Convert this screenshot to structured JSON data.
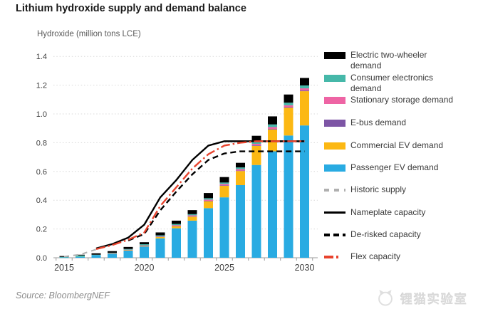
{
  "header": {
    "title": "Lithium hydroxide supply and demand balance"
  },
  "axis": {
    "ylabel": "Hydroxide (million tons LCE)"
  },
  "source": {
    "text": "Source: BloombergNEF"
  },
  "watermark": {
    "text": "锂猫实验室"
  },
  "colors": {
    "passenger_ev": "#29abe2",
    "commercial_ev": "#fcb813",
    "e_bus": "#7d55a5",
    "stationary_storage": "#ee64a4",
    "consumer_electronics": "#46b8a9",
    "two_wheeler": "#000000",
    "nameplate": "#000000",
    "derisked": "#000000",
    "flex": "#e8432d",
    "historic": "#b0b0b0",
    "gridline": "#d9d9d9",
    "axis_text": "#404040"
  },
  "legend": {
    "items": [
      {
        "label": "Electric two-wheeler demand",
        "swatch": "bar",
        "color_key": "two_wheeler"
      },
      {
        "label": "Consumer electronics demand",
        "swatch": "bar",
        "color_key": "consumer_electronics"
      },
      {
        "label": "Stationary storage demand",
        "swatch": "bar",
        "color_key": "stationary_storage"
      },
      {
        "label": "E-bus demand",
        "swatch": "bar",
        "color_key": "e_bus"
      },
      {
        "label": "Commercial EV demand",
        "swatch": "bar",
        "color_key": "commercial_ev"
      },
      {
        "label": "Passenger EV demand",
        "swatch": "bar",
        "color_key": "passenger_ev"
      },
      {
        "label": "Historic supply",
        "swatch": "line-dashed-gray",
        "color_key": "historic"
      },
      {
        "label": "Nameplate capacity",
        "swatch": "line-solid",
        "color_key": "nameplate"
      },
      {
        "label": "De-risked capacity",
        "swatch": "line-dashed",
        "color_key": "derisked"
      },
      {
        "label": "Flex capacity",
        "swatch": "line-dash-dot",
        "color_key": "flex"
      }
    ]
  },
  "chart_data": {
    "type": "bar",
    "subtype": "stacked-bar-with-lines",
    "title": "Lithium hydroxide supply and demand balance",
    "ylabel": "Hydroxide (million tons LCE)",
    "ylim": [
      0,
      1.4
    ],
    "yticks": [
      "0.0",
      "0.2",
      "0.4",
      "0.6",
      "0.8",
      "1.0",
      "1.2",
      "1.4"
    ],
    "years": [
      2015,
      2016,
      2017,
      2018,
      2019,
      2020,
      2021,
      2022,
      2023,
      2024,
      2025,
      2026,
      2027,
      2028,
      2029,
      2030
    ],
    "xtick_labels": [
      "2015",
      "2020",
      "2025",
      "2030"
    ],
    "grid": "horizontal-dotted",
    "legend_position": "right",
    "bar_series": [
      {
        "name": "Passenger EV demand",
        "color_key": "passenger_ev",
        "values": [
          0.002,
          0.006,
          0.018,
          0.028,
          0.05,
          0.078,
          0.135,
          0.205,
          0.258,
          0.345,
          0.42,
          0.505,
          0.645,
          0.74,
          0.85,
          0.92
        ]
      },
      {
        "name": "Commercial EV demand",
        "color_key": "commercial_ev",
        "values": [
          0,
          0,
          0,
          0.002,
          0.004,
          0.005,
          0.01,
          0.015,
          0.028,
          0.048,
          0.08,
          0.098,
          0.133,
          0.152,
          0.193,
          0.238
        ]
      },
      {
        "name": "E-bus demand",
        "color_key": "e_bus",
        "values": [
          0,
          0,
          0,
          0,
          0,
          0.001,
          0.002,
          0.002,
          0.003,
          0.003,
          0.003,
          0.003,
          0.004,
          0.004,
          0.004,
          0.005
        ]
      },
      {
        "name": "Stationary storage demand",
        "color_key": "stationary_storage",
        "values": [
          0,
          0,
          0,
          0.001,
          0.002,
          0.002,
          0.003,
          0.005,
          0.006,
          0.008,
          0.01,
          0.01,
          0.01,
          0.013,
          0.013,
          0.015
        ]
      },
      {
        "name": "Consumer electronics demand",
        "color_key": "consumer_electronics",
        "values": [
          0.004,
          0.01,
          0.003,
          0.004,
          0.005,
          0.008,
          0.006,
          0.008,
          0.008,
          0.01,
          0.01,
          0.012,
          0.014,
          0.018,
          0.018,
          0.02
        ]
      },
      {
        "name": "Electric two-wheeler demand",
        "color_key": "two_wheeler",
        "values": [
          0.006,
          0.005,
          0.01,
          0.011,
          0.014,
          0.014,
          0.02,
          0.023,
          0.028,
          0.036,
          0.038,
          0.032,
          0.042,
          0.056,
          0.057,
          0.052
        ]
      }
    ],
    "line_series": [
      {
        "name": "Historic supply",
        "color_key": "historic",
        "style": "dashed-gray",
        "values": [
          0.008,
          0.022,
          0.058,
          null,
          null,
          null,
          null,
          null,
          null,
          null,
          null,
          null,
          null,
          null,
          null,
          null
        ]
      },
      {
        "name": "Nameplate capacity",
        "color_key": "nameplate",
        "style": "solid",
        "values": [
          null,
          null,
          0.065,
          0.095,
          0.14,
          0.23,
          0.42,
          0.54,
          0.68,
          0.78,
          0.81,
          0.81,
          0.81,
          0.81,
          0.81,
          0.81
        ]
      },
      {
        "name": "De-risked capacity",
        "color_key": "derisked",
        "style": "dashed",
        "values": [
          null,
          null,
          null,
          null,
          0.12,
          0.165,
          0.33,
          0.46,
          0.58,
          0.68,
          0.725,
          0.74,
          0.74,
          0.74,
          0.74,
          0.74
        ]
      },
      {
        "name": "Flex capacity",
        "color_key": "flex",
        "style": "dash-dot",
        "values": [
          null,
          null,
          0.06,
          0.088,
          0.125,
          0.175,
          0.36,
          0.49,
          0.62,
          0.72,
          0.78,
          0.8,
          0.81,
          0.81,
          0.81,
          0.81
        ]
      }
    ]
  }
}
